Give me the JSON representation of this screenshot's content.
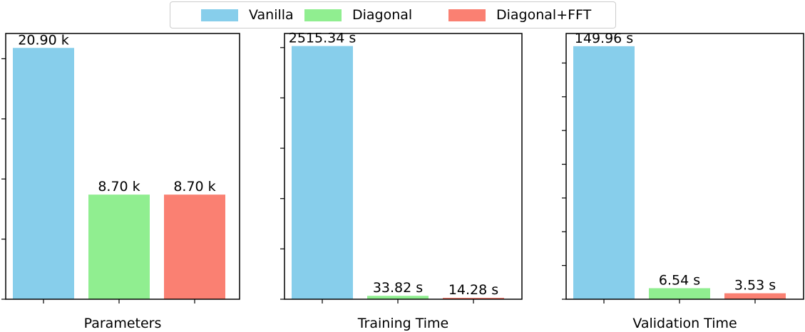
{
  "legend": {
    "items": [
      {
        "label": "Vanilla",
        "color": "#87ceeb"
      },
      {
        "label": "Diagonal",
        "color": "#90ee90"
      },
      {
        "label": "Diagonal+FFT",
        "color": "#fa8072"
      }
    ]
  },
  "chart_data": [
    {
      "type": "bar",
      "xlabel": "Parameters",
      "categories": [
        "Vanilla",
        "Diagonal",
        "Diagonal+FFT"
      ],
      "values": [
        20.9,
        8.7,
        8.7
      ],
      "labels": [
        "20.90 k",
        "8.70 k",
        "8.70 k"
      ],
      "ylim": [
        0,
        22.1
      ],
      "yticks": [
        0,
        5,
        10,
        15,
        20
      ],
      "colors": [
        "#87ceeb",
        "#90ee90",
        "#fa8072"
      ]
    },
    {
      "type": "bar",
      "xlabel": "Training Time",
      "categories": [
        "Vanilla",
        "Diagonal",
        "Diagonal+FFT"
      ],
      "values": [
        2515.34,
        33.82,
        14.28
      ],
      "labels": [
        "2515.34 s",
        "33.82 s",
        "14.28 s"
      ],
      "ylim": [
        0,
        2640
      ],
      "yticks": [
        0,
        500,
        1000,
        1500,
        2000,
        2500
      ],
      "colors": [
        "#87ceeb",
        "#90ee90",
        "#fa8072"
      ]
    },
    {
      "type": "bar",
      "xlabel": "Validation Time",
      "categories": [
        "Vanilla",
        "Diagonal",
        "Diagonal+FFT"
      ],
      "values": [
        149.96,
        6.54,
        3.53
      ],
      "labels": [
        "149.96 s",
        "6.54 s",
        "3.53 s"
      ],
      "ylim": [
        0,
        157.5
      ],
      "yticks": [
        0,
        20,
        40,
        60,
        80,
        100,
        120,
        140
      ],
      "colors": [
        "#87ceeb",
        "#90ee90",
        "#fa8072"
      ]
    }
  ]
}
